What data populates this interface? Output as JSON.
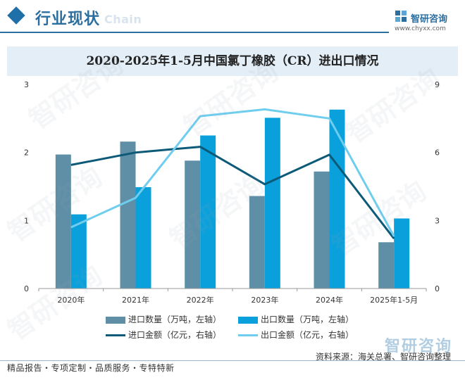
{
  "header": {
    "title": "行业现状",
    "ghost_text": "Chain",
    "brand_name": "智研咨询",
    "brand_url": "www.chyxx.com",
    "footer_brand": "智研咨询"
  },
  "footer": {
    "source": "资料来源：海关总署、智研咨询整理",
    "tagline": "精品报告・专项定制・品质服务・专特特新"
  },
  "watermark": "智研咨询",
  "colors": {
    "import_qty": "#5e8fa7",
    "export_qty": "#0aa0dc",
    "import_amt": "#0d5a78",
    "export_amt": "#6fcdee",
    "accent": "#2c6e9e",
    "title_band": "#e3eef7"
  },
  "chart_data": {
    "type": "bar",
    "title": "2020-2025年1-5月中国氯丁橡胶（CR）进出口情况",
    "categories": [
      "2020年",
      "2021年",
      "2022年",
      "2023年",
      "2024年",
      "2025年1-5月"
    ],
    "y_left": {
      "ylim": [
        0,
        3
      ],
      "ticks": [
        "0",
        "1",
        "2",
        "3"
      ]
    },
    "y_right": {
      "ylim": [
        0,
        9
      ],
      "ticks": [
        "0",
        "3",
        "6",
        "9"
      ]
    },
    "grid": false,
    "legend_position": "bottom",
    "series": [
      {
        "name": "进口数量（万吨，左轴）",
        "type": "bar",
        "axis": "left",
        "values": [
          1.97,
          2.16,
          1.88,
          1.36,
          1.72,
          0.68
        ]
      },
      {
        "name": "出口数量（万吨，左轴）",
        "type": "bar",
        "axis": "left",
        "values": [
          1.09,
          1.49,
          2.25,
          2.51,
          2.63,
          1.03
        ]
      },
      {
        "name": "进口金额（亿元，右轴）",
        "type": "line",
        "axis": "right",
        "values": [
          5.45,
          6.0,
          6.25,
          4.6,
          5.9,
          2.2
        ]
      },
      {
        "name": "出口金额（亿元，右轴）",
        "type": "line",
        "axis": "right",
        "values": [
          2.7,
          4.0,
          7.6,
          7.9,
          7.5,
          2.3
        ]
      }
    ]
  }
}
